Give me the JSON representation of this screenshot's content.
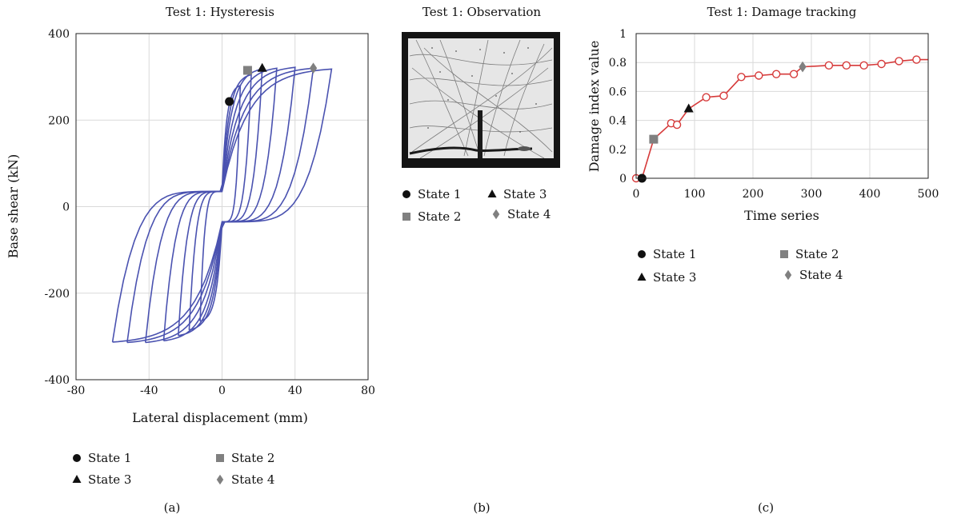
{
  "chart_data": [
    {
      "panel": "a",
      "type": "line",
      "title": "Test 1: Hysteresis",
      "xlabel": "Lateral displacement (mm)",
      "ylabel": "Base shear (kN)",
      "xlim": [
        -80,
        80
      ],
      "ylim": [
        -400,
        400
      ],
      "xticks": [
        -80,
        -40,
        0,
        40,
        80
      ],
      "yticks": [
        400,
        200,
        0,
        -200,
        -400
      ],
      "ytick_labels": [
        "400",
        "200",
        "0",
        "-200",
        "-400"
      ],
      "xtick_labels": [
        "-80",
        "-40",
        "0",
        "40",
        "80"
      ],
      "grid": true,
      "line_color": "#4a52b0",
      "loops": [
        {
          "amp": 10,
          "peak": 280,
          "neg_amp": -12,
          "neg_peak": -265
        },
        {
          "amp": 16,
          "peak": 305,
          "neg_amp": -18,
          "neg_peak": -285
        },
        {
          "amp": 22,
          "peak": 318,
          "neg_amp": -24,
          "neg_peak": -298
        },
        {
          "amp": 30,
          "peak": 320,
          "neg_amp": -32,
          "neg_peak": -310
        },
        {
          "amp": 40,
          "peak": 322,
          "neg_amp": -42,
          "neg_peak": -314
        },
        {
          "amp": 50,
          "peak": 320,
          "neg_amp": -52,
          "neg_peak": -314
        },
        {
          "amp": 60,
          "peak": 318,
          "neg_amp": -60,
          "neg_peak": -313
        }
      ],
      "states": [
        {
          "name": "State 1",
          "marker": "circle",
          "x": 4,
          "y": 243,
          "color": "#111111"
        },
        {
          "name": "State 2",
          "marker": "square",
          "x": 14,
          "y": 315,
          "color": "#808080"
        },
        {
          "name": "State 3",
          "marker": "triangle",
          "x": 22,
          "y": 320,
          "color": "#111111"
        },
        {
          "name": "State 4",
          "marker": "diamond",
          "x": 50,
          "y": 320,
          "color": "#808080"
        }
      ],
      "caption": "(a)"
    },
    {
      "panel": "c",
      "type": "line",
      "title": "Test 1: Damage tracking",
      "xlabel": "Time series",
      "ylabel": "Damage index value",
      "xlim": [
        0,
        500
      ],
      "ylim": [
        0,
        1
      ],
      "xticks": [
        0,
        100,
        200,
        300,
        400,
        500
      ],
      "yticks": [
        0,
        0.2,
        0.4,
        0.6,
        0.8,
        1
      ],
      "xtick_labels": [
        "0",
        "100",
        "200",
        "300",
        "400",
        "500"
      ],
      "ytick_labels": [
        "0",
        "0.2",
        "0.4",
        "0.6",
        "0.8",
        "1"
      ],
      "grid": true,
      "line_color": "#d63a3a",
      "x": [
        0,
        10,
        30,
        60,
        70,
        90,
        120,
        150,
        180,
        210,
        240,
        270,
        285,
        330,
        360,
        390,
        420,
        450,
        480,
        500
      ],
      "y": [
        0,
        0,
        0.27,
        0.38,
        0.37,
        0.48,
        0.56,
        0.57,
        0.7,
        0.71,
        0.72,
        0.72,
        0.77,
        0.78,
        0.78,
        0.78,
        0.79,
        0.81,
        0.82,
        0.82
      ],
      "circle_markers_x": [
        0,
        60,
        70,
        120,
        150,
        180,
        210,
        240,
        270,
        330,
        360,
        390,
        420,
        450,
        480
      ],
      "states": [
        {
          "name": "State 1",
          "marker": "circle",
          "x": 10,
          "y": 0,
          "color": "#111111"
        },
        {
          "name": "State 2",
          "marker": "square",
          "x": 30,
          "y": 0.27,
          "color": "#808080"
        },
        {
          "name": "State 3",
          "marker": "triangle",
          "x": 90,
          "y": 0.48,
          "color": "#111111"
        },
        {
          "name": "State 4",
          "marker": "diamond",
          "x": 285,
          "y": 0.77,
          "color": "#808080"
        }
      ],
      "caption": "(c)"
    }
  ],
  "observation": {
    "title": "Test 1: Observation",
    "caption": "(b)",
    "states": [
      {
        "name": "State 1",
        "marker": "circle"
      },
      {
        "name": "State 3",
        "marker": "triangle"
      },
      {
        "name": "State 2",
        "marker": "square"
      },
      {
        "name": "State 4",
        "marker": "diamond"
      }
    ]
  }
}
